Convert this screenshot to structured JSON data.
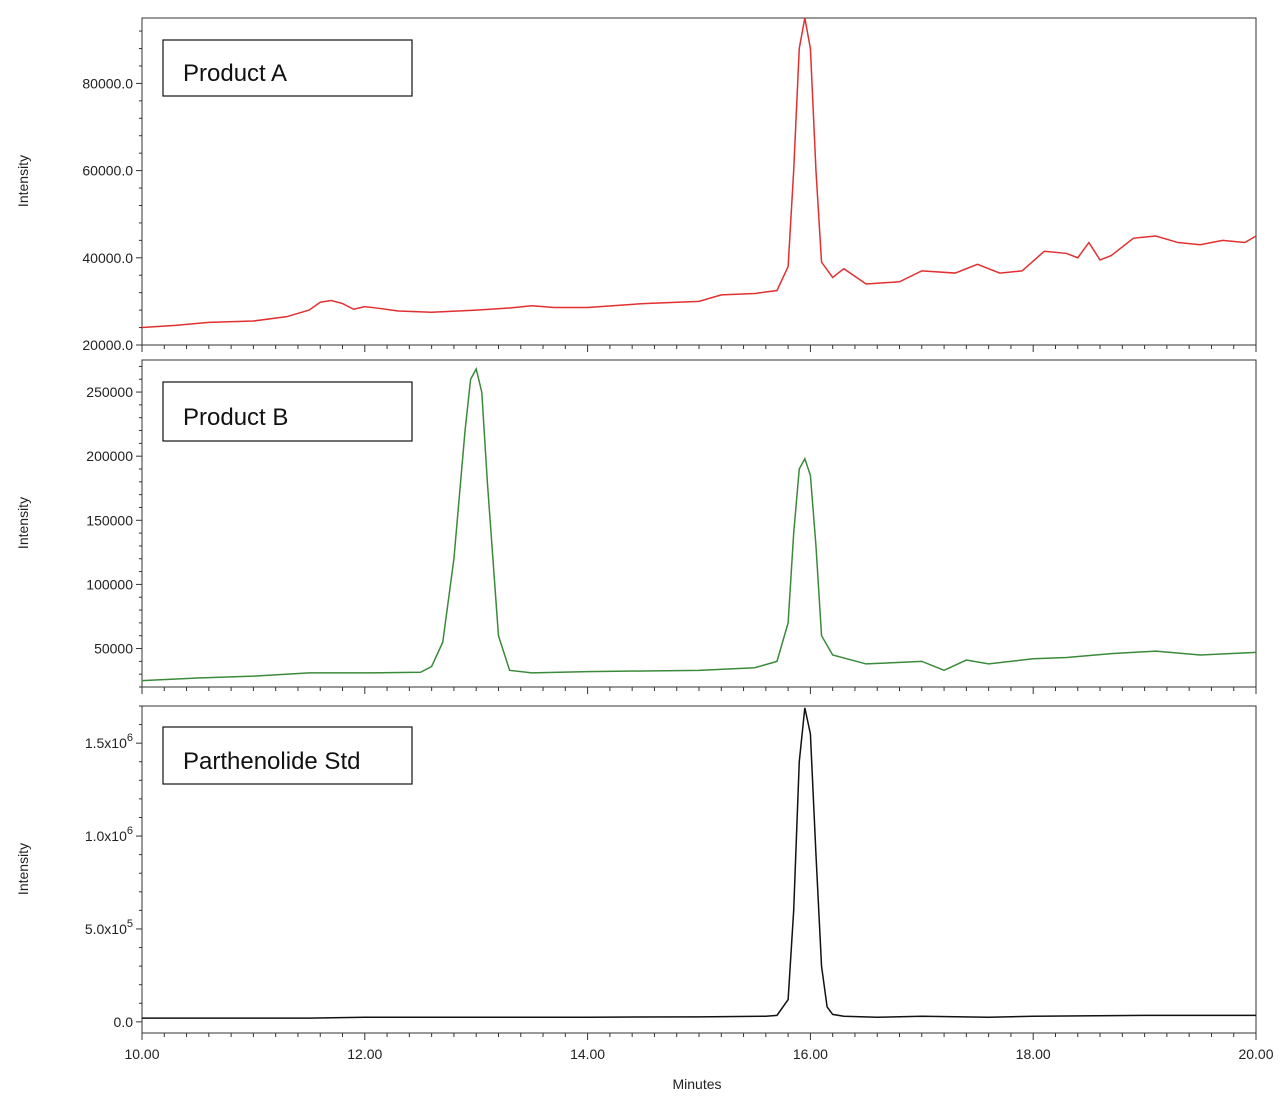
{
  "chart_data": [
    {
      "type": "line",
      "label": "Product A",
      "ylabel": "Intensity",
      "xlim": [
        10.0,
        20.0
      ],
      "ylim": [
        20000,
        95000
      ],
      "yticks": [
        20000,
        40000,
        60000,
        80000
      ],
      "ytick_labels": [
        "20000.0",
        "40000.0",
        "60000.0",
        "80000.0"
      ],
      "color": "#e03030",
      "series": [
        {
          "x": [
            10.0,
            10.3,
            10.6,
            11.0,
            11.3,
            11.5,
            11.6,
            11.7,
            11.8,
            11.9,
            12.0,
            12.1,
            12.3,
            12.6,
            13.0,
            13.3,
            13.5,
            13.7,
            14.0,
            14.5,
            15.0,
            15.2,
            15.5,
            15.7,
            15.8,
            15.85,
            15.9,
            15.95,
            16.0,
            16.05,
            16.1,
            16.2,
            16.3,
            16.5,
            16.8,
            17.0,
            17.3,
            17.5,
            17.7,
            17.9,
            18.1,
            18.3,
            18.4,
            18.5,
            18.6,
            18.7,
            18.9,
            19.1,
            19.3,
            19.5,
            19.7,
            19.9,
            20.0
          ],
          "y": [
            24000,
            24500,
            25200,
            25500,
            26500,
            28000,
            29800,
            30200,
            29500,
            28200,
            28800,
            28500,
            27800,
            27500,
            28000,
            28500,
            29000,
            28600,
            28600,
            29500,
            30000,
            31500,
            31800,
            32500,
            38000,
            60000,
            88000,
            95000,
            88000,
            60000,
            39000,
            35500,
            37500,
            34000,
            34500,
            37000,
            36500,
            38500,
            36500,
            37000,
            41500,
            41000,
            40000,
            43500,
            39500,
            40500,
            44500,
            45000,
            43500,
            43000,
            44000,
            43500,
            45000
          ]
        }
      ]
    },
    {
      "type": "line",
      "label": "Product B",
      "ylabel": "Intensity",
      "xlim": [
        10.0,
        20.0
      ],
      "ylim": [
        20000,
        275000
      ],
      "yticks": [
        50000,
        100000,
        150000,
        200000,
        250000
      ],
      "ytick_labels": [
        "50000",
        "100000",
        "150000",
        "200000",
        "250000"
      ],
      "color": "#3a8a3a",
      "series": [
        {
          "x": [
            10.0,
            10.5,
            11.0,
            11.5,
            12.0,
            12.5,
            12.6,
            12.7,
            12.8,
            12.9,
            12.95,
            13.0,
            13.05,
            13.1,
            13.2,
            13.3,
            13.5,
            14.0,
            14.5,
            15.0,
            15.5,
            15.7,
            15.8,
            15.85,
            15.9,
            15.95,
            16.0,
            16.05,
            16.1,
            16.2,
            16.5,
            17.0,
            17.2,
            17.4,
            17.6,
            18.0,
            18.3,
            18.7,
            19.1,
            19.5,
            20.0
          ],
          "y": [
            25000,
            27000,
            28500,
            31000,
            31000,
            31500,
            36000,
            55000,
            120000,
            220000,
            260000,
            268000,
            250000,
            180000,
            60000,
            33000,
            31000,
            32000,
            32500,
            33000,
            35000,
            40000,
            70000,
            140000,
            190000,
            198000,
            185000,
            130000,
            60000,
            45000,
            38000,
            40000,
            33000,
            41000,
            38000,
            42000,
            43000,
            46000,
            48000,
            45000,
            47000
          ]
        }
      ]
    },
    {
      "type": "line",
      "label": "Parthenolide Std",
      "ylabel": "Intensity",
      "xlabel": "Minutes",
      "xlim": [
        10.0,
        20.0
      ],
      "ylim": [
        -60000,
        1700000
      ],
      "yticks": [
        0,
        500000,
        1000000,
        1500000
      ],
      "ytick_labels": [
        {
          "mantissa": "0.0",
          "exp": ""
        },
        {
          "mantissa": "5.0x10",
          "exp": "5"
        },
        {
          "mantissa": "1.0x10",
          "exp": "6"
        },
        {
          "mantissa": "1.5x10",
          "exp": "6"
        }
      ],
      "xticks": [
        10.0,
        12.0,
        14.0,
        16.0,
        18.0,
        20.0
      ],
      "xtick_labels": [
        "10.00",
        "12.00",
        "14.00",
        "16.00",
        "18.00",
        "20.00"
      ],
      "color": "#111111",
      "series": [
        {
          "x": [
            10.0,
            11.5,
            12.0,
            14.0,
            15.0,
            15.6,
            15.7,
            15.8,
            15.85,
            15.9,
            15.95,
            16.0,
            16.05,
            16.1,
            16.15,
            16.2,
            16.3,
            16.6,
            17.0,
            17.6,
            18.0,
            19.0,
            19.5,
            20.0
          ],
          "y": [
            20000,
            20000,
            25000,
            25000,
            27000,
            30000,
            35000,
            120000,
            600000,
            1400000,
            1690000,
            1550000,
            900000,
            300000,
            80000,
            40000,
            30000,
            25000,
            30000,
            25000,
            30000,
            35000,
            35000,
            35000
          ]
        }
      ]
    }
  ]
}
